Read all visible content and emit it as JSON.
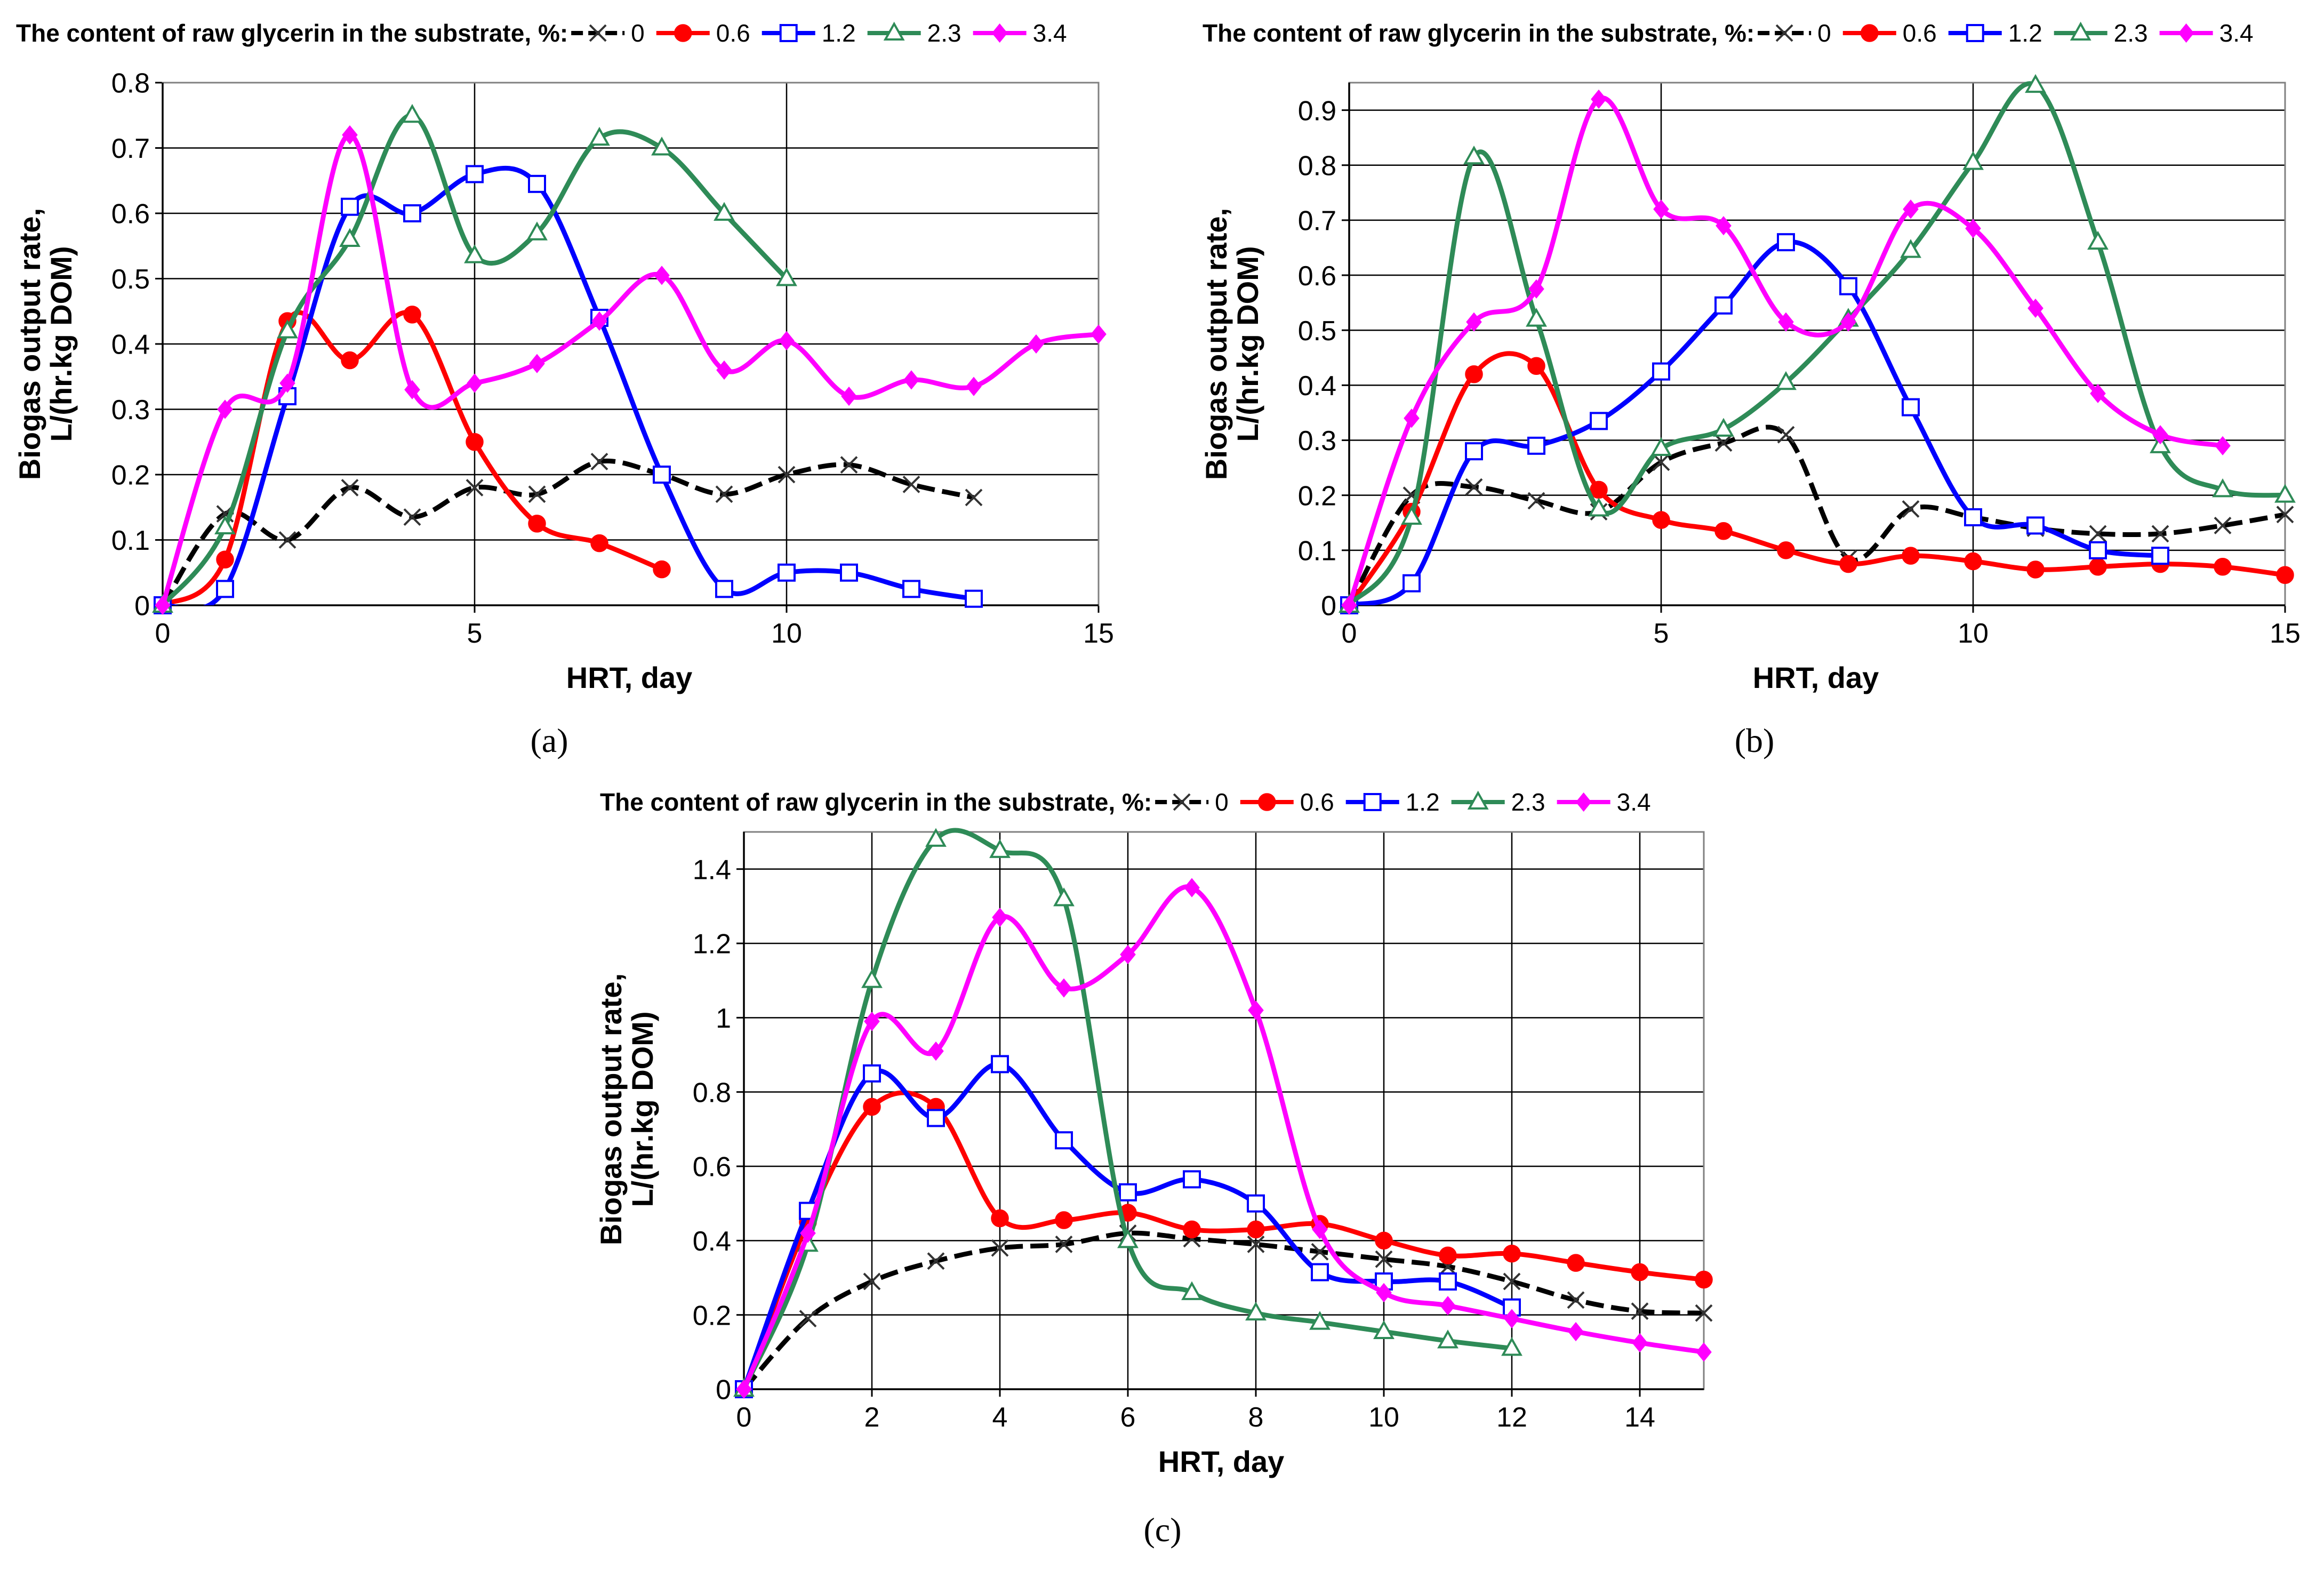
{
  "chart_data": [
    {
      "panel": "a",
      "type": "line",
      "legend_title": "The content of raw glycerin in the substrate, %:",
      "xlabel": "HRT, day",
      "ylabel_line1": "Biogas output rate,",
      "ylabel_line2": "L/(hr.kg DOM)",
      "xlim": [
        0,
        15
      ],
      "ylim": [
        0,
        0.8
      ],
      "xticks": [
        0,
        5,
        10,
        15
      ],
      "yticks": [
        0,
        0.1,
        0.2,
        0.3,
        0.4,
        0.5,
        0.6,
        0.7,
        0.8
      ],
      "ytick_labels": [
        "0",
        "0.1",
        "0.2",
        "0.3",
        "0.4",
        "0.5",
        "0.6",
        "0.7",
        "0.8"
      ],
      "series": [
        {
          "name": "0",
          "marker": "x",
          "dashed": true,
          "x": [
            0,
            1,
            2,
            3,
            4,
            5,
            6,
            7,
            8,
            9,
            10,
            11,
            12,
            13
          ],
          "values": [
            0,
            0.14,
            0.1,
            0.18,
            0.135,
            0.18,
            0.17,
            0.22,
            0.2,
            0.17,
            0.2,
            0.215,
            0.185,
            0.165
          ]
        },
        {
          "name": "0.6",
          "marker": "circle",
          "x": [
            0,
            1,
            2,
            3,
            4,
            5,
            6,
            7,
            8
          ],
          "values": [
            0,
            0.07,
            0.435,
            0.375,
            0.445,
            0.25,
            0.125,
            0.095,
            0.055
          ]
        },
        {
          "name": "1.2",
          "marker": "square",
          "x": [
            0,
            1,
            2,
            3,
            4,
            5,
            6,
            7,
            8,
            9,
            10,
            11,
            12,
            13
          ],
          "values": [
            0,
            0.025,
            0.32,
            0.61,
            0.6,
            0.66,
            0.645,
            0.44,
            0.2,
            0.025,
            0.05,
            0.05,
            0.025,
            0.01
          ]
        },
        {
          "name": "2.3",
          "marker": "triangle",
          "x": [
            0,
            1,
            2,
            3,
            4,
            5,
            6,
            7,
            8,
            9,
            10
          ],
          "values": [
            0,
            0.12,
            0.42,
            0.56,
            0.75,
            0.535,
            0.57,
            0.715,
            0.7,
            0.6,
            0.5
          ]
        },
        {
          "name": "3.4",
          "marker": "diamond",
          "x": [
            0,
            1,
            2,
            3,
            4,
            5,
            6,
            7,
            8,
            9,
            10,
            11,
            12,
            13,
            14,
            15
          ],
          "values": [
            0,
            0.3,
            0.34,
            0.72,
            0.33,
            0.34,
            0.37,
            0.435,
            0.505,
            0.36,
            0.405,
            0.32,
            0.345,
            0.335,
            0.4,
            0.415
          ]
        }
      ]
    },
    {
      "panel": "b",
      "type": "line",
      "legend_title": "The content of raw glycerin in the substrate, %:",
      "xlabel": "HRT, day",
      "ylabel_line1": "Biogas output rate,",
      "ylabel_line2": "L/(hr.kg DOM)",
      "xlim": [
        0,
        15
      ],
      "ylim": [
        0,
        0.95
      ],
      "xticks": [
        0,
        5,
        10,
        15
      ],
      "yticks": [
        0,
        0.1,
        0.2,
        0.3,
        0.4,
        0.5,
        0.6,
        0.7,
        0.8,
        0.9
      ],
      "ytick_labels": [
        "0",
        "0.1",
        "0.2",
        "0.3",
        "0.4",
        "0.5",
        "0.6",
        "0.7",
        "0.8",
        "0.9"
      ],
      "series": [
        {
          "name": "0",
          "marker": "x",
          "dashed": true,
          "x": [
            0,
            1,
            2,
            3,
            4,
            5,
            6,
            7,
            8,
            9,
            10,
            11,
            12,
            13,
            14,
            15
          ],
          "values": [
            0,
            0.2,
            0.215,
            0.19,
            0.17,
            0.26,
            0.295,
            0.31,
            0.085,
            0.175,
            0.16,
            0.14,
            0.13,
            0.13,
            0.145,
            0.165
          ]
        },
        {
          "name": "0.6",
          "marker": "circle",
          "x": [
            0,
            1,
            2,
            3,
            4,
            5,
            6,
            7,
            8,
            9,
            10,
            11,
            12,
            13,
            14,
            15
          ],
          "values": [
            0,
            0.17,
            0.42,
            0.435,
            0.21,
            0.155,
            0.135,
            0.1,
            0.075,
            0.09,
            0.08,
            0.065,
            0.07,
            0.075,
            0.07,
            0.055
          ]
        },
        {
          "name": "1.2",
          "marker": "square",
          "x": [
            0,
            1,
            2,
            3,
            4,
            5,
            6,
            7,
            8,
            9,
            10,
            11,
            12,
            13
          ],
          "values": [
            0,
            0.04,
            0.28,
            0.29,
            0.335,
            0.425,
            0.545,
            0.66,
            0.58,
            0.36,
            0.16,
            0.145,
            0.1,
            0.09
          ]
        },
        {
          "name": "2.3",
          "marker": "triangle",
          "x": [
            0,
            1,
            2,
            3,
            4,
            5,
            6,
            7,
            8,
            9,
            10,
            11,
            12,
            13,
            14,
            15
          ],
          "values": [
            0,
            0.16,
            0.815,
            0.52,
            0.175,
            0.285,
            0.32,
            0.405,
            0.52,
            0.645,
            0.805,
            0.945,
            0.66,
            0.29,
            0.21,
            0.2
          ]
        },
        {
          "name": "3.4",
          "marker": "diamond",
          "x": [
            0,
            1,
            2,
            3,
            4,
            5,
            6,
            7,
            8,
            9,
            10,
            11,
            12,
            13,
            14
          ],
          "values": [
            0,
            0.34,
            0.515,
            0.575,
            0.92,
            0.72,
            0.69,
            0.515,
            0.515,
            0.72,
            0.685,
            0.54,
            0.385,
            0.31,
            0.29
          ]
        }
      ]
    },
    {
      "panel": "c",
      "type": "line",
      "legend_title": "The content of raw glycerin in the substrate, %:",
      "xlabel": "HRT, day",
      "ylabel_line1": "Biogas output rate,",
      "ylabel_line2": "L/(hr.kg DOM)",
      "xlim": [
        0,
        15
      ],
      "ylim": [
        0,
        1.5
      ],
      "xticks": [
        0,
        2,
        4,
        6,
        8,
        10,
        12,
        14
      ],
      "yticks": [
        0,
        0.2,
        0.4,
        0.6,
        0.8,
        1.0,
        1.2,
        1.4
      ],
      "ytick_labels": [
        "0",
        "0.2",
        "0.4",
        "0.6",
        "0.8",
        "1",
        "1.2",
        "1.4"
      ],
      "series": [
        {
          "name": "0",
          "marker": "x",
          "dashed": true,
          "x": [
            0,
            1,
            2,
            3,
            4,
            5,
            6,
            7,
            8,
            9,
            10,
            11,
            12,
            13,
            14,
            15
          ],
          "values": [
            0,
            0.19,
            0.29,
            0.345,
            0.38,
            0.39,
            0.42,
            0.405,
            0.39,
            0.37,
            0.35,
            0.33,
            0.29,
            0.24,
            0.21,
            0.205
          ]
        },
        {
          "name": "0.6",
          "marker": "circle",
          "x": [
            0,
            1,
            2,
            3,
            4,
            5,
            6,
            7,
            8,
            9,
            10,
            11,
            12,
            13,
            14,
            15
          ],
          "values": [
            0,
            0.45,
            0.76,
            0.76,
            0.46,
            0.455,
            0.475,
            0.43,
            0.43,
            0.445,
            0.4,
            0.36,
            0.365,
            0.34,
            0.315,
            0.295
          ]
        },
        {
          "name": "1.2",
          "marker": "square",
          "x": [
            0,
            1,
            2,
            3,
            4,
            5,
            6,
            7,
            8,
            9,
            10,
            11,
            12
          ],
          "values": [
            0,
            0.48,
            0.85,
            0.73,
            0.875,
            0.67,
            0.53,
            0.565,
            0.5,
            0.315,
            0.29,
            0.29,
            0.22
          ]
        },
        {
          "name": "2.3",
          "marker": "triangle",
          "x": [
            0,
            1,
            2,
            3,
            4,
            5,
            6,
            7,
            8,
            9,
            10,
            11,
            12
          ],
          "values": [
            0,
            0.39,
            1.1,
            1.48,
            1.45,
            1.32,
            0.4,
            0.26,
            0.205,
            0.18,
            0.155,
            0.13,
            0.11
          ]
        },
        {
          "name": "3.4",
          "marker": "diamond",
          "x": [
            0,
            1,
            2,
            3,
            4,
            5,
            6,
            7,
            8,
            9,
            10,
            11,
            12,
            13,
            14,
            15
          ],
          "values": [
            0,
            0.42,
            0.99,
            0.91,
            1.27,
            1.08,
            1.17,
            1.35,
            1.02,
            0.43,
            0.26,
            0.225,
            0.19,
            0.155,
            0.125,
            0.1
          ]
        }
      ]
    }
  ],
  "series_colors": {
    "0": "#000000",
    "0.6": "#ff0000",
    "1.2": "#0000ff",
    "2.3": "#2e8b57",
    "3.4": "#ff00ff"
  },
  "panel_labels": [
    "(a)",
    "(b)",
    "(c)"
  ]
}
